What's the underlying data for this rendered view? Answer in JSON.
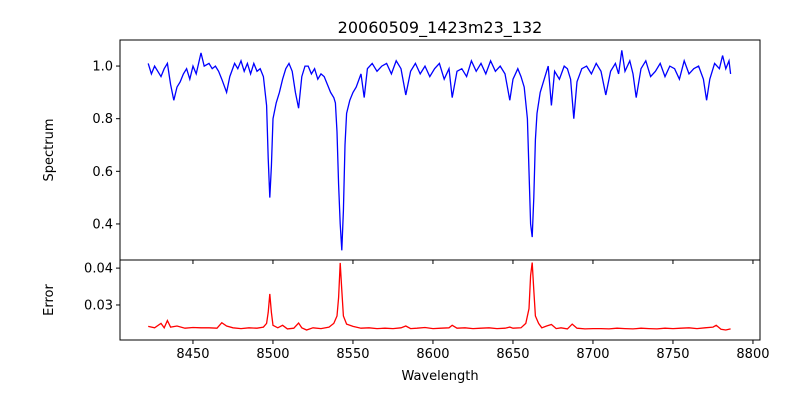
{
  "chart_data": [
    {
      "type": "line",
      "title": "20060509_1423m23_132",
      "xlabel": "",
      "ylabel": "Spectrum",
      "xlim": [
        8404.4,
        8804.4
      ],
      "ylim": [
        0.263,
        1.099
      ],
      "xticks": [
        8450,
        8500,
        8550,
        8600,
        8650,
        8700,
        8750,
        8800
      ],
      "yticks": [
        0.4,
        0.6,
        0.8,
        1.0
      ],
      "ytick_labels": [
        "0.4",
        "0.6",
        "0.8",
        "1.0"
      ],
      "grid": false,
      "color": "#0000ff",
      "series": [
        {
          "name": "Spectrum",
          "points": [
            [
              8422,
              1.01
            ],
            [
              8424,
              0.97
            ],
            [
              8426,
              1.0
            ],
            [
              8428,
              0.98
            ],
            [
              8430,
              0.96
            ],
            [
              8432,
              0.99
            ],
            [
              8434,
              1.01
            ],
            [
              8436,
              0.93
            ],
            [
              8438,
              0.87
            ],
            [
              8440,
              0.92
            ],
            [
              8442,
              0.94
            ],
            [
              8444,
              0.97
            ],
            [
              8446,
              0.99
            ],
            [
              8448,
              0.95
            ],
            [
              8450,
              1.0
            ],
            [
              8452,
              0.97
            ],
            [
              8455,
              1.05
            ],
            [
              8457,
              1.0
            ],
            [
              8460,
              1.01
            ],
            [
              8462,
              0.99
            ],
            [
              8464,
              1.0
            ],
            [
              8466,
              0.98
            ],
            [
              8468,
              0.95
            ],
            [
              8471,
              0.9
            ],
            [
              8473,
              0.96
            ],
            [
              8476,
              1.01
            ],
            [
              8478,
              0.99
            ],
            [
              8480,
              1.02
            ],
            [
              8482,
              0.98
            ],
            [
              8484,
              1.01
            ],
            [
              8486,
              0.97
            ],
            [
              8488,
              1.01
            ],
            [
              8490,
              0.98
            ],
            [
              8492,
              0.99
            ],
            [
              8494,
              0.96
            ],
            [
              8496,
              0.85
            ],
            [
              8497,
              0.65
            ],
            [
              8498,
              0.5
            ],
            [
              8499,
              0.62
            ],
            [
              8500,
              0.8
            ],
            [
              8502,
              0.86
            ],
            [
              8504,
              0.9
            ],
            [
              8506,
              0.95
            ],
            [
              8508,
              0.99
            ],
            [
              8510,
              1.01
            ],
            [
              8512,
              0.98
            ],
            [
              8514,
              0.9
            ],
            [
              8516,
              0.84
            ],
            [
              8518,
              0.96
            ],
            [
              8520,
              1.0
            ],
            [
              8522,
              1.0
            ],
            [
              8524,
              0.97
            ],
            [
              8526,
              0.99
            ],
            [
              8528,
              0.95
            ],
            [
              8530,
              0.97
            ],
            [
              8532,
              0.96
            ],
            [
              8534,
              0.93
            ],
            [
              8536,
              0.9
            ],
            [
              8538,
              0.88
            ],
            [
              8539,
              0.86
            ],
            [
              8540,
              0.75
            ],
            [
              8541,
              0.55
            ],
            [
              8542,
              0.4
            ],
            [
              8543,
              0.3
            ],
            [
              8544,
              0.45
            ],
            [
              8545,
              0.7
            ],
            [
              8546,
              0.82
            ],
            [
              8548,
              0.87
            ],
            [
              8550,
              0.9
            ],
            [
              8552,
              0.92
            ],
            [
              8555,
              0.97
            ],
            [
              8557,
              0.88
            ],
            [
              8559,
              0.99
            ],
            [
              8562,
              1.01
            ],
            [
              8565,
              0.98
            ],
            [
              8568,
              1.0
            ],
            [
              8571,
              1.01
            ],
            [
              8574,
              0.97
            ],
            [
              8577,
              1.02
            ],
            [
              8580,
              0.99
            ],
            [
              8583,
              0.89
            ],
            [
              8586,
              0.98
            ],
            [
              8589,
              1.01
            ],
            [
              8592,
              0.97
            ],
            [
              8595,
              1.0
            ],
            [
              8598,
              0.96
            ],
            [
              8601,
              0.99
            ],
            [
              8604,
              1.01
            ],
            [
              8607,
              0.95
            ],
            [
              8610,
              0.99
            ],
            [
              8612,
              0.88
            ],
            [
              8615,
              0.98
            ],
            [
              8618,
              0.99
            ],
            [
              8621,
              0.96
            ],
            [
              8624,
              1.02
            ],
            [
              8627,
              0.98
            ],
            [
              8630,
              1.01
            ],
            [
              8633,
              0.97
            ],
            [
              8636,
              1.02
            ],
            [
              8639,
              0.98
            ],
            [
              8642,
              1.0
            ],
            [
              8645,
              0.97
            ],
            [
              8648,
              0.87
            ],
            [
              8650,
              0.95
            ],
            [
              8653,
              0.99
            ],
            [
              8655,
              0.96
            ],
            [
              8657,
              0.92
            ],
            [
              8659,
              0.8
            ],
            [
              8660,
              0.6
            ],
            [
              8661,
              0.4
            ],
            [
              8662,
              0.35
            ],
            [
              8663,
              0.5
            ],
            [
              8664,
              0.72
            ],
            [
              8665,
              0.82
            ],
            [
              8667,
              0.9
            ],
            [
              8670,
              0.96
            ],
            [
              8672,
              1.0
            ],
            [
              8674,
              0.85
            ],
            [
              8676,
              0.98
            ],
            [
              8679,
              0.95
            ],
            [
              8682,
              1.0
            ],
            [
              8684,
              0.99
            ],
            [
              8686,
              0.95
            ],
            [
              8688,
              0.8
            ],
            [
              8690,
              0.94
            ],
            [
              8693,
              0.99
            ],
            [
              8696,
              1.0
            ],
            [
              8699,
              0.97
            ],
            [
              8702,
              1.01
            ],
            [
              8705,
              0.98
            ],
            [
              8708,
              0.89
            ],
            [
              8711,
              0.98
            ],
            [
              8714,
              1.01
            ],
            [
              8716,
              0.97
            ],
            [
              8718,
              1.06
            ],
            [
              8720,
              0.98
            ],
            [
              8723,
              1.02
            ],
            [
              8725,
              0.97
            ],
            [
              8727,
              0.88
            ],
            [
              8730,
              0.99
            ],
            [
              8733,
              1.02
            ],
            [
              8736,
              0.96
            ],
            [
              8739,
              0.98
            ],
            [
              8742,
              1.01
            ],
            [
              8745,
              0.96
            ],
            [
              8748,
              1.0
            ],
            [
              8751,
              0.99
            ],
            [
              8754,
              0.95
            ],
            [
              8757,
              1.02
            ],
            [
              8760,
              0.97
            ],
            [
              8763,
              0.99
            ],
            [
              8766,
              1.0
            ],
            [
              8769,
              0.95
            ],
            [
              8771,
              0.87
            ],
            [
              8773,
              0.95
            ],
            [
              8776,
              1.01
            ],
            [
              8779,
              0.99
            ],
            [
              8781,
              1.04
            ],
            [
              8783,
              0.99
            ],
            [
              8785,
              1.02
            ],
            [
              8786,
              0.97
            ]
          ]
        }
      ]
    },
    {
      "type": "line",
      "title": "",
      "xlabel": "Wavelength",
      "ylabel": "Error",
      "xlim": [
        8404.4,
        8804.4
      ],
      "ylim": [
        0.0205,
        0.0422
      ],
      "xticks": [
        8450,
        8500,
        8550,
        8600,
        8650,
        8700,
        8750,
        8800
      ],
      "xtick_labels": [
        "8450",
        "8500",
        "8550",
        "8600",
        "8650",
        "8700",
        "8750",
        "8800"
      ],
      "yticks": [
        0.03,
        0.04
      ],
      "ytick_labels": [
        "0.03",
        "0.04"
      ],
      "grid": false,
      "color": "#ff0000",
      "series": [
        {
          "name": "Error",
          "points": [
            [
              8422,
              0.0242
            ],
            [
              8426,
              0.0238
            ],
            [
              8430,
              0.025
            ],
            [
              8432,
              0.0238
            ],
            [
              8434,
              0.0258
            ],
            [
              8436,
              0.024
            ],
            [
              8440,
              0.0243
            ],
            [
              8445,
              0.0237
            ],
            [
              8450,
              0.0239
            ],
            [
              8455,
              0.0238
            ],
            [
              8460,
              0.0238
            ],
            [
              8465,
              0.0237
            ],
            [
              8468,
              0.0252
            ],
            [
              8471,
              0.0243
            ],
            [
              8475,
              0.0238
            ],
            [
              8480,
              0.0236
            ],
            [
              8485,
              0.0238
            ],
            [
              8490,
              0.0237
            ],
            [
              8494,
              0.024
            ],
            [
              8496,
              0.025
            ],
            [
              8497,
              0.028
            ],
            [
              8498,
              0.033
            ],
            [
              8499,
              0.028
            ],
            [
              8500,
              0.0245
            ],
            [
              8503,
              0.0238
            ],
            [
              8506,
              0.0245
            ],
            [
              8509,
              0.0235
            ],
            [
              8513,
              0.0237
            ],
            [
              8516,
              0.0251
            ],
            [
              8518,
              0.0238
            ],
            [
              8521,
              0.0232
            ],
            [
              8525,
              0.0238
            ],
            [
              8530,
              0.0236
            ],
            [
              8535,
              0.024
            ],
            [
              8538,
              0.025
            ],
            [
              8540,
              0.027
            ],
            [
              8541,
              0.032
            ],
            [
              8542,
              0.0414
            ],
            [
              8543,
              0.034
            ],
            [
              8544,
              0.027
            ],
            [
              8546,
              0.0248
            ],
            [
              8550,
              0.0242
            ],
            [
              8555,
              0.0237
            ],
            [
              8560,
              0.0238
            ],
            [
              8565,
              0.0236
            ],
            [
              8570,
              0.0237
            ],
            [
              8575,
              0.0236
            ],
            [
              8580,
              0.0238
            ],
            [
              8583,
              0.0243
            ],
            [
              8586,
              0.0236
            ],
            [
              8590,
              0.0237
            ],
            [
              8595,
              0.0239
            ],
            [
              8600,
              0.0236
            ],
            [
              8605,
              0.0237
            ],
            [
              8610,
              0.0238
            ],
            [
              8612,
              0.0245
            ],
            [
              8615,
              0.0237
            ],
            [
              8620,
              0.0238
            ],
            [
              8625,
              0.0236
            ],
            [
              8630,
              0.0237
            ],
            [
              8635,
              0.0238
            ],
            [
              8640,
              0.0236
            ],
            [
              8645,
              0.0237
            ],
            [
              8648,
              0.024
            ],
            [
              8650,
              0.0237
            ],
            [
              8655,
              0.0238
            ],
            [
              8658,
              0.025
            ],
            [
              8660,
              0.029
            ],
            [
              8661,
              0.038
            ],
            [
              8662,
              0.0415
            ],
            [
              8663,
              0.034
            ],
            [
              8664,
              0.027
            ],
            [
              8666,
              0.025
            ],
            [
              8668,
              0.0238
            ],
            [
              8671,
              0.0243
            ],
            [
              8674,
              0.0247
            ],
            [
              8677,
              0.0236
            ],
            [
              8680,
              0.0238
            ],
            [
              8684,
              0.0235
            ],
            [
              8687,
              0.0248
            ],
            [
              8690,
              0.0237
            ],
            [
              8695,
              0.0235
            ],
            [
              8700,
              0.0236
            ],
            [
              8705,
              0.0236
            ],
            [
              8710,
              0.0235
            ],
            [
              8715,
              0.0237
            ],
            [
              8720,
              0.0236
            ],
            [
              8725,
              0.0235
            ],
            [
              8730,
              0.0237
            ],
            [
              8735,
              0.0236
            ],
            [
              8740,
              0.0235
            ],
            [
              8745,
              0.0237
            ],
            [
              8750,
              0.0236
            ],
            [
              8755,
              0.0237
            ],
            [
              8760,
              0.0238
            ],
            [
              8765,
              0.0236
            ],
            [
              8770,
              0.0238
            ],
            [
              8775,
              0.024
            ],
            [
              8777,
              0.0245
            ],
            [
              8780,
              0.0234
            ],
            [
              8783,
              0.0232
            ],
            [
              8786,
              0.0235
            ]
          ]
        }
      ]
    }
  ]
}
